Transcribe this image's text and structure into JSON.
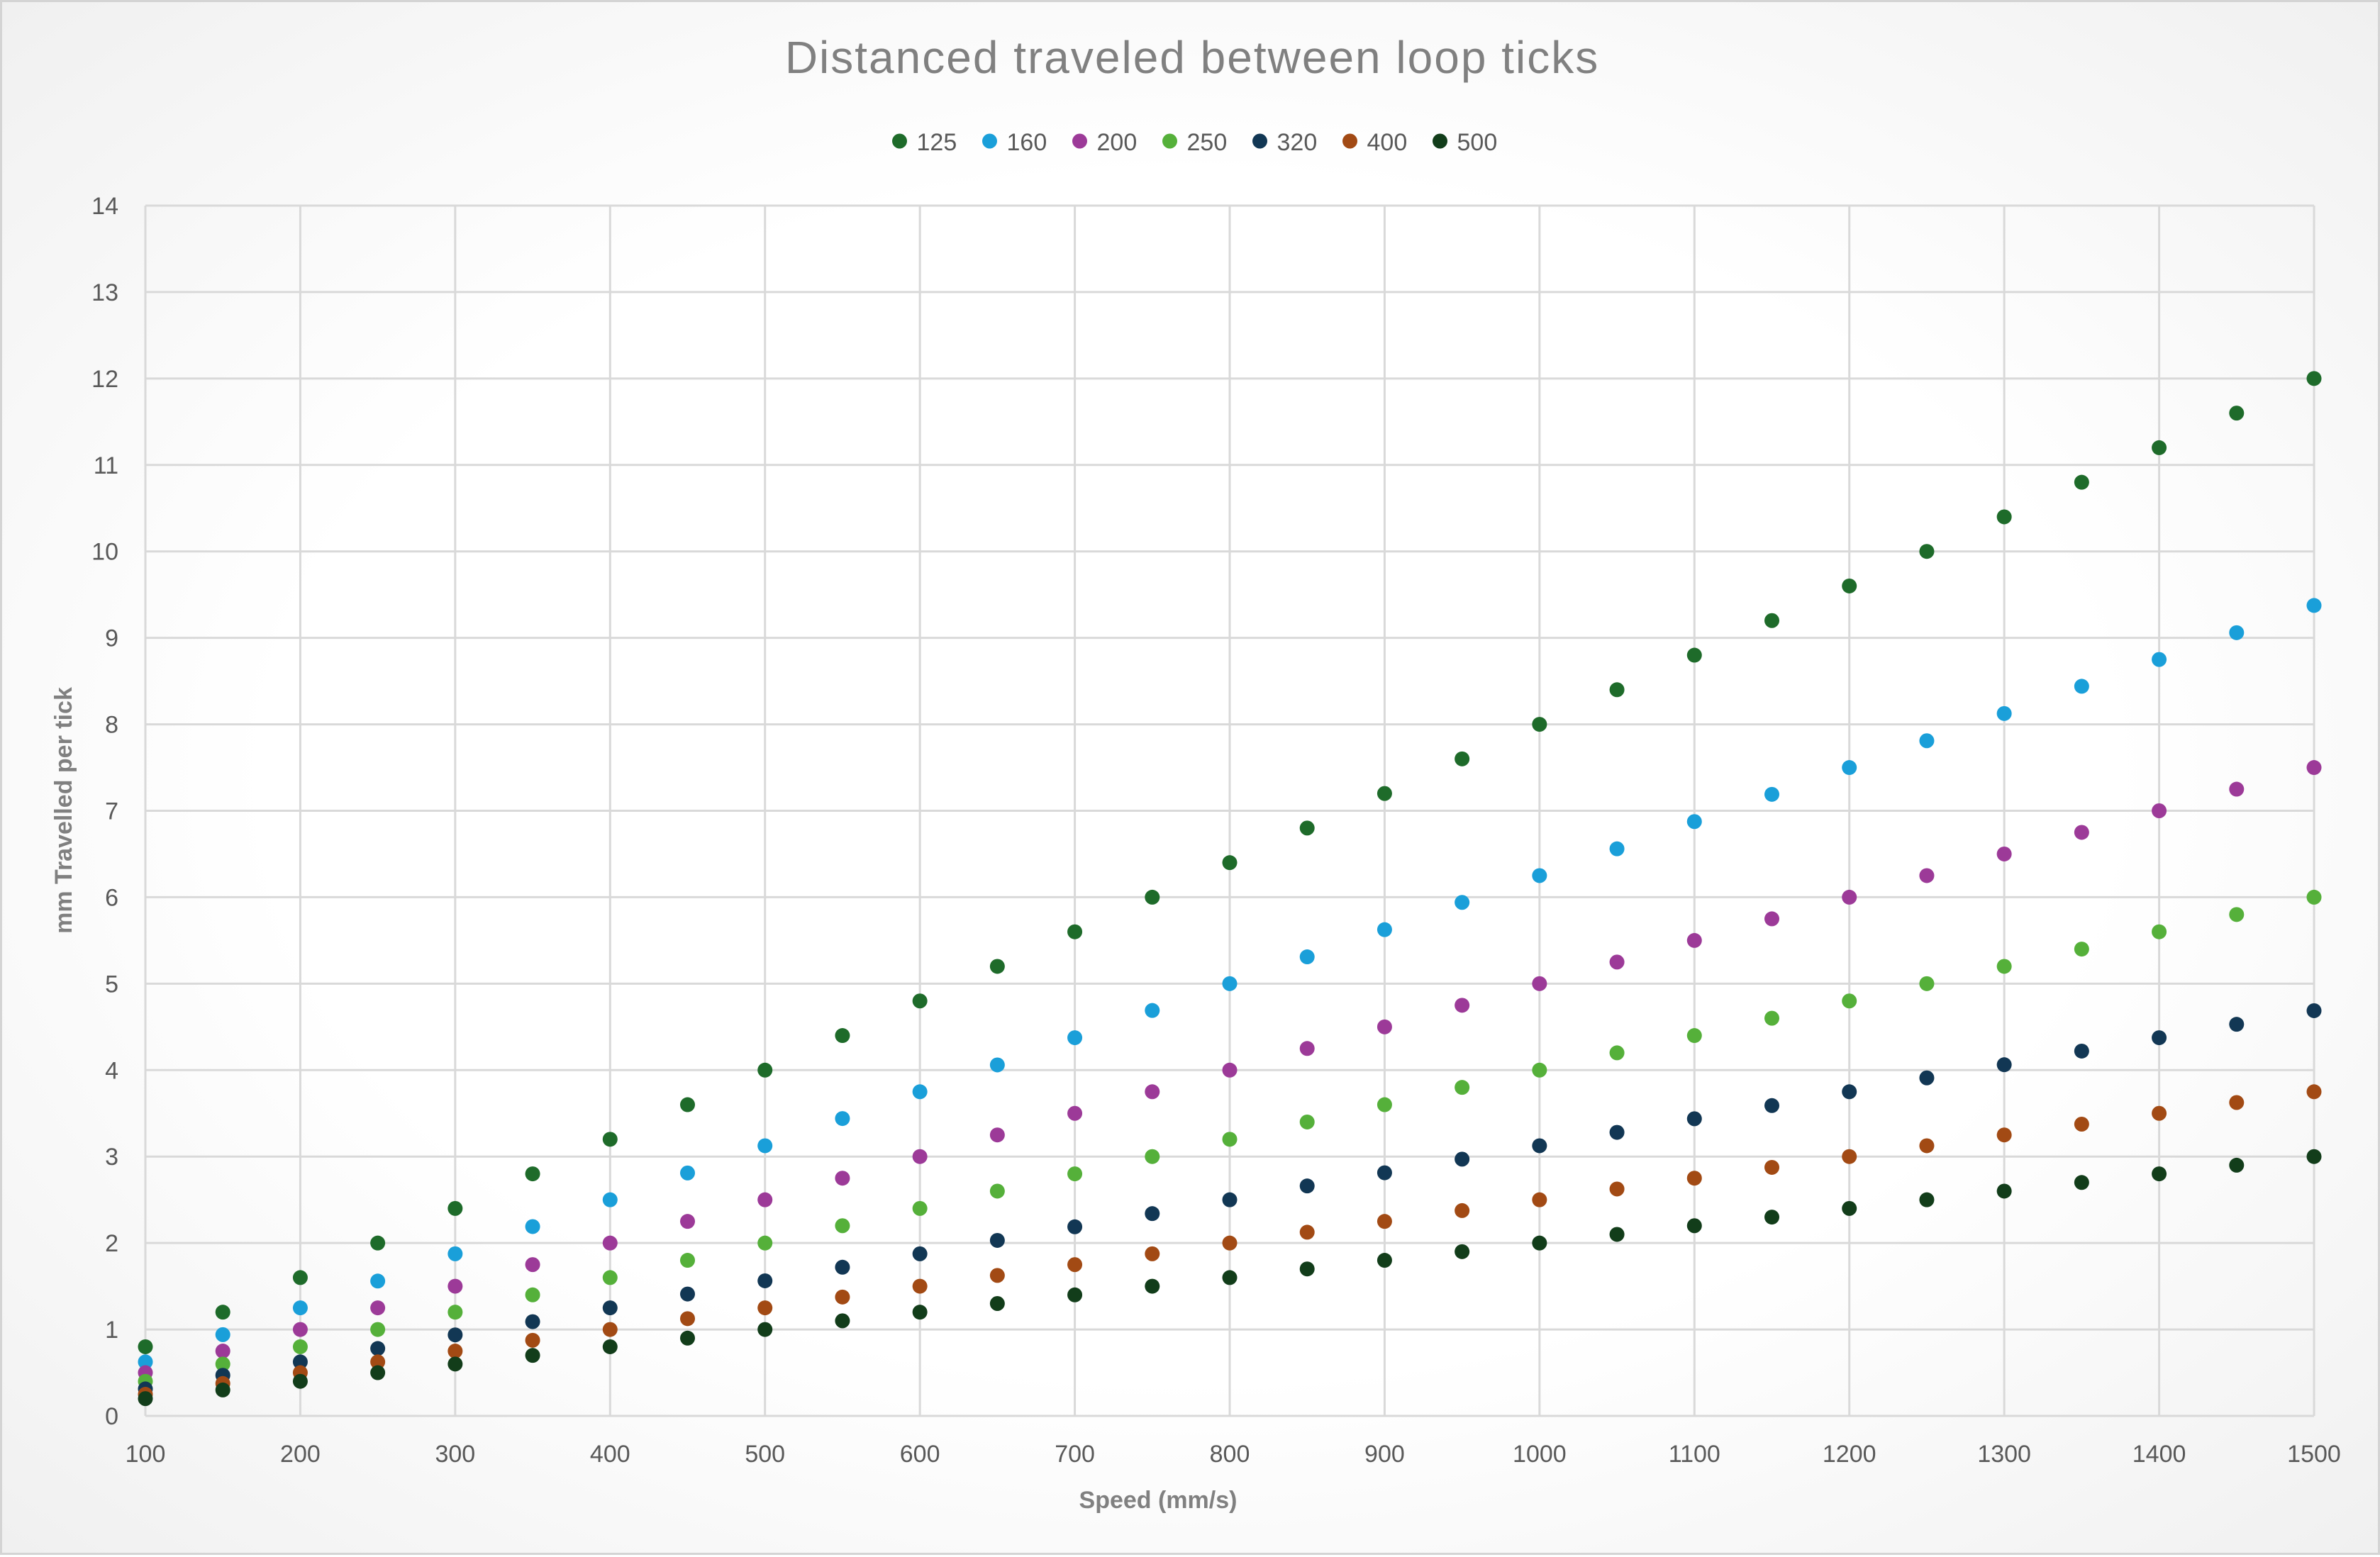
{
  "chart_data": {
    "type": "scatter",
    "title": "Distanced traveled between loop ticks",
    "xlabel": "Speed (mm/s)",
    "ylabel": "mm Travelled per tick",
    "xlim": [
      100,
      1500
    ],
    "ylim": [
      0,
      14
    ],
    "x_ticks": [
      "100",
      "200",
      "300",
      "400",
      "500",
      "600",
      "700",
      "800",
      "900",
      "1000",
      "1100",
      "1200",
      "1300",
      "1400",
      "1500"
    ],
    "y_ticks": [
      "0",
      "1",
      "2",
      "3",
      "4",
      "5",
      "6",
      "7",
      "8",
      "9",
      "10",
      "11",
      "12",
      "13",
      "14"
    ],
    "grid": "both",
    "legend_position": "top",
    "x": [
      100,
      150,
      200,
      250,
      300,
      350,
      400,
      450,
      500,
      550,
      600,
      650,
      700,
      750,
      800,
      850,
      900,
      950,
      1000,
      1050,
      1100,
      1150,
      1200,
      1250,
      1300,
      1350,
      1400,
      1450,
      1500
    ],
    "series": [
      {
        "name": "125",
        "color": "#1e6b2a",
        "values": [
          0.8,
          1.2,
          1.6,
          2.0,
          2.4,
          2.8,
          3.2,
          3.6,
          4.0,
          4.4,
          4.8,
          5.2,
          5.6,
          6.0,
          6.4,
          6.8,
          7.2,
          7.6,
          8.0,
          8.4,
          8.8,
          9.2,
          9.6,
          10.0,
          10.4,
          10.8,
          11.2,
          11.6,
          12.0
        ]
      },
      {
        "name": "160",
        "color": "#1a9fd9",
        "values": [
          0.625,
          0.94,
          1.25,
          1.56,
          1.875,
          2.19,
          2.5,
          2.81,
          3.125,
          3.44,
          3.75,
          4.06,
          4.375,
          4.69,
          5.0,
          5.31,
          5.625,
          5.94,
          6.25,
          6.56,
          6.875,
          7.19,
          7.5,
          7.81,
          8.125,
          8.44,
          8.75,
          9.06,
          9.375
        ]
      },
      {
        "name": "200",
        "color": "#9c3a98",
        "values": [
          0.5,
          0.75,
          1.0,
          1.25,
          1.5,
          1.75,
          2.0,
          2.25,
          2.5,
          2.75,
          3.0,
          3.25,
          3.5,
          3.75,
          4.0,
          4.25,
          4.5,
          4.75,
          5.0,
          5.25,
          5.5,
          5.75,
          6.0,
          6.25,
          6.5,
          6.75,
          7.0,
          7.25,
          7.5
        ]
      },
      {
        "name": "250",
        "color": "#55b03a",
        "values": [
          0.4,
          0.6,
          0.8,
          1.0,
          1.2,
          1.4,
          1.6,
          1.8,
          2.0,
          2.2,
          2.4,
          2.6,
          2.8,
          3.0,
          3.2,
          3.4,
          3.6,
          3.8,
          4.0,
          4.2,
          4.4,
          4.6,
          4.8,
          5.0,
          5.2,
          5.4,
          5.6,
          5.8,
          6.0
        ]
      },
      {
        "name": "320",
        "color": "#123754",
        "values": [
          0.3125,
          0.47,
          0.625,
          0.78,
          0.9375,
          1.09,
          1.25,
          1.41,
          1.5625,
          1.72,
          1.875,
          2.03,
          2.1875,
          2.34,
          2.5,
          2.66,
          2.8125,
          2.97,
          3.125,
          3.28,
          3.4375,
          3.59,
          3.75,
          3.91,
          4.0625,
          4.22,
          4.375,
          4.53,
          4.6875
        ]
      },
      {
        "name": "400",
        "color": "#a24a14",
        "values": [
          0.25,
          0.375,
          0.5,
          0.625,
          0.75,
          0.875,
          1.0,
          1.125,
          1.25,
          1.375,
          1.5,
          1.625,
          1.75,
          1.875,
          2.0,
          2.125,
          2.25,
          2.375,
          2.5,
          2.625,
          2.75,
          2.875,
          3.0,
          3.125,
          3.25,
          3.375,
          3.5,
          3.625,
          3.75
        ]
      },
      {
        "name": "500",
        "color": "#123d1a",
        "values": [
          0.2,
          0.3,
          0.4,
          0.5,
          0.6,
          0.7,
          0.8,
          0.9,
          1.0,
          1.1,
          1.2,
          1.3,
          1.4,
          1.5,
          1.6,
          1.7,
          1.8,
          1.9,
          2.0,
          2.1,
          2.2,
          2.3,
          2.4,
          2.5,
          2.6,
          2.7,
          2.8,
          2.9,
          3.0
        ]
      }
    ]
  }
}
